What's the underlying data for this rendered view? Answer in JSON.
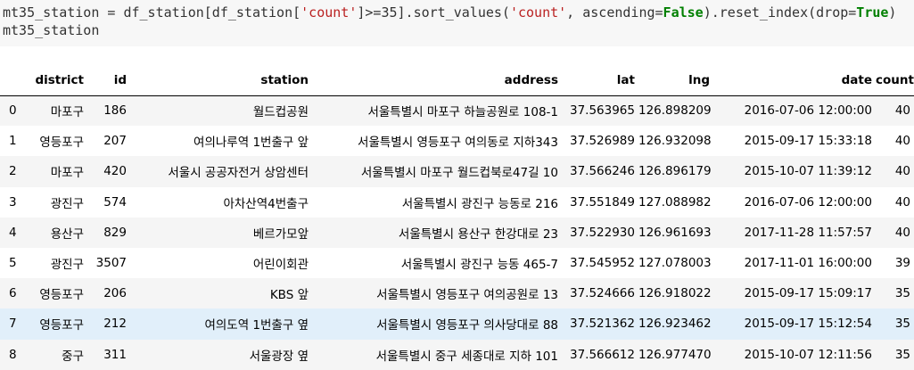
{
  "code": {
    "line1": {
      "a": "mt35_station = df_station[df_station[",
      "s1": "'count'",
      "b": "]>=35].sort_values(",
      "s2": "'count'",
      "c": ", ascending=",
      "k1": "False",
      "d": ").reset_index(drop=",
      "k2": "True",
      "e": ")"
    },
    "line2": "mt35_station"
  },
  "table": {
    "columns": [
      "",
      "district",
      "id",
      "station",
      "address",
      "lat",
      "lng",
      "date",
      "count"
    ],
    "rows": [
      {
        "idx": "0",
        "district": "마포구",
        "id": "186",
        "station": "월드컵공원",
        "address": "서울특별시 마포구 하늘공원로 108-1",
        "lat": "37.563965",
        "lng": "126.898209",
        "date": "2016-07-06 12:00:00",
        "count": "40"
      },
      {
        "idx": "1",
        "district": "영등포구",
        "id": "207",
        "station": "여의나루역 1번출구 앞",
        "address": "서울특별시 영등포구 여의동로 지하343",
        "lat": "37.526989",
        "lng": "126.932098",
        "date": "2015-09-17 15:33:18",
        "count": "40"
      },
      {
        "idx": "2",
        "district": "마포구",
        "id": "420",
        "station": "서울시 공공자전거 상암센터",
        "address": "서울특별시 마포구 월드컵북로47길 10",
        "lat": "37.566246",
        "lng": "126.896179",
        "date": "2015-10-07 11:39:12",
        "count": "40"
      },
      {
        "idx": "3",
        "district": "광진구",
        "id": "574",
        "station": "아차산역4번출구",
        "address": "서울특별시 광진구 능동로 216",
        "lat": "37.551849",
        "lng": "127.088982",
        "date": "2016-07-06 12:00:00",
        "count": "40"
      },
      {
        "idx": "4",
        "district": "용산구",
        "id": "829",
        "station": "베르가모앞",
        "address": "서울특별시 용산구 한강대로 23",
        "lat": "37.522930",
        "lng": "126.961693",
        "date": "2017-11-28 11:57:57",
        "count": "40"
      },
      {
        "idx": "5",
        "district": "광진구",
        "id": "3507",
        "station": "어린이회관",
        "address": "서울특별시 광진구 능동 465-7",
        "lat": "37.545952",
        "lng": "127.078003",
        "date": "2017-11-01 16:00:00",
        "count": "39"
      },
      {
        "idx": "6",
        "district": "영등포구",
        "id": "206",
        "station": "KBS 앞",
        "address": "서울특별시 영등포구 여의공원로 13",
        "lat": "37.524666",
        "lng": "126.918022",
        "date": "2015-09-17 15:09:17",
        "count": "35"
      },
      {
        "idx": "7",
        "district": "영등포구",
        "id": "212",
        "station": "여의도역 1번출구 옆",
        "address": "서울특별시 영등포구 의사당대로 88",
        "lat": "37.521362",
        "lng": "126.923462",
        "date": "2015-09-17 15:12:54",
        "count": "35"
      },
      {
        "idx": "8",
        "district": "중구",
        "id": "311",
        "station": "서울광장 옆",
        "address": "서울특별시 중구 세종대로 지하 101",
        "lat": "37.566612",
        "lng": "126.977470",
        "date": "2015-10-07 12:11:56",
        "count": "35"
      }
    ],
    "highlighted_row": "7"
  }
}
